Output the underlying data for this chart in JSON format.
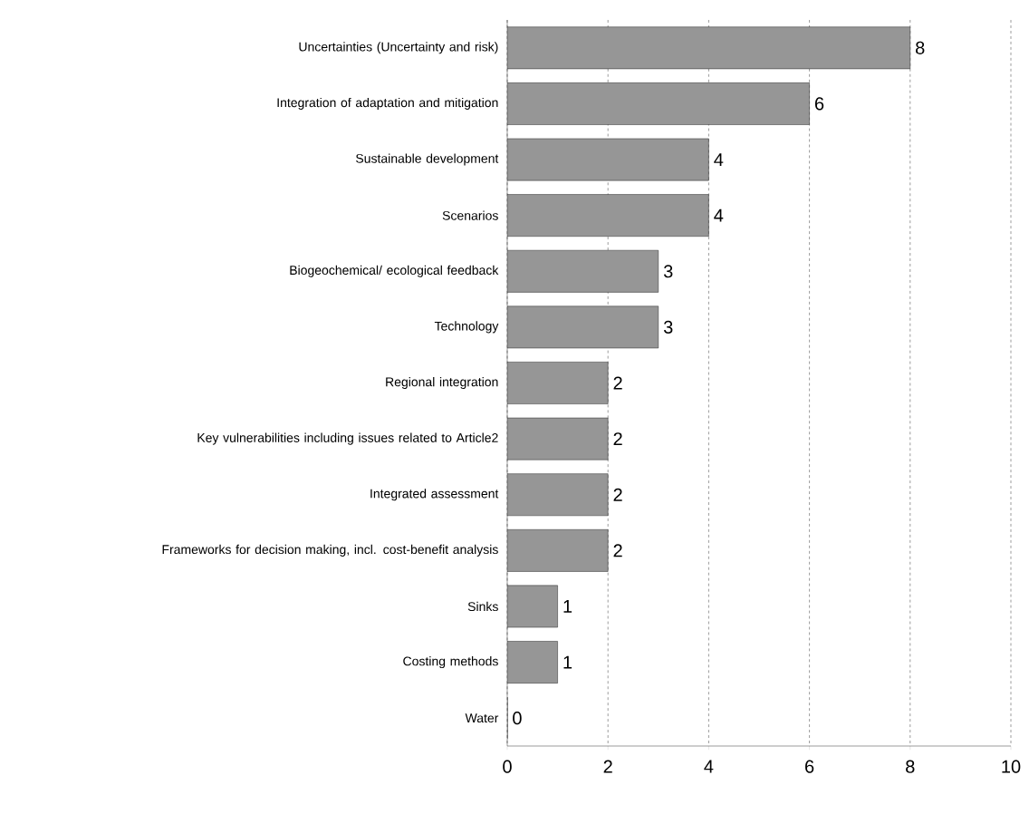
{
  "chart_data": {
    "type": "bar",
    "orientation": "horizontal",
    "categories": [
      "Uncertainties (Uncertainty and risk)",
      "Integration of adaptation and mitigation",
      "Sustainable development",
      "Scenarios",
      "Biogeochemical/ ecological feedback",
      "Technology",
      "Regional integration",
      "Key vulnerabilities including issues related to Article2",
      "Integrated assessment",
      "Frameworks for decision making, incl. cost-benefit analysis",
      "Sinks",
      "Costing methods",
      "Water"
    ],
    "values": [
      8,
      6,
      4,
      4,
      3,
      3,
      2,
      2,
      2,
      2,
      1,
      1,
      0
    ],
    "color": "#969696",
    "xlim": [
      0,
      10
    ],
    "xticks": [
      0,
      2,
      4,
      6,
      8,
      10
    ],
    "grid": "x",
    "data_labels": true
  }
}
